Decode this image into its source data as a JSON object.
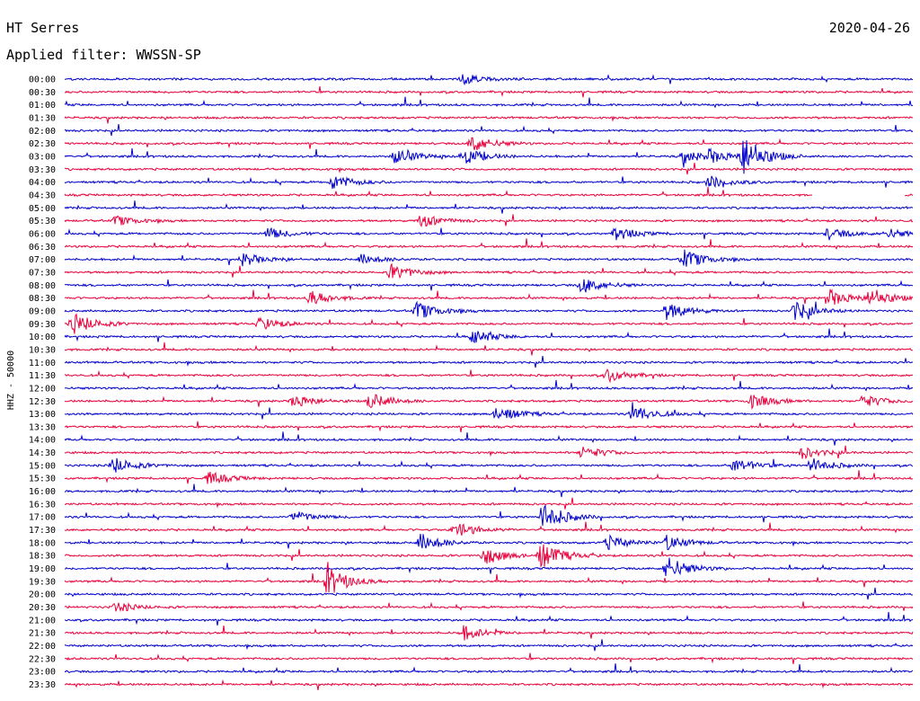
{
  "chart_data": {
    "type": "line",
    "title": "HT Serres",
    "subtitle": "Applied filter: WWSSN-SP",
    "date": "2020-04-26",
    "ylabel": "HHZ - 50000",
    "xlabel": "",
    "grid": false,
    "legend": "none",
    "colors": {
      "even": "#0000cc",
      "odd": "#e8003c",
      "background": "#ffffff",
      "text": "#000000"
    },
    "row_labels": [
      "00:00",
      "00:30",
      "01:00",
      "01:30",
      "02:00",
      "02:30",
      "03:00",
      "03:30",
      "04:00",
      "04:30",
      "05:00",
      "05:30",
      "06:00",
      "06:30",
      "07:00",
      "07:30",
      "08:00",
      "08:30",
      "09:00",
      "09:30",
      "10:00",
      "10:30",
      "11:00",
      "11:30",
      "12:00",
      "12:30",
      "13:00",
      "13:30",
      "14:00",
      "14:30",
      "15:00",
      "15:30",
      "16:00",
      "16:30",
      "17:00",
      "17:30",
      "18:00",
      "18:30",
      "19:00",
      "19:30",
      "20:00",
      "20:30",
      "21:00",
      "21:30",
      "22:00",
      "22:30",
      "23:00",
      "23:30"
    ],
    "row_minutes": 30,
    "gaps": [
      {
        "row": "04:30",
        "from": 0.882,
        "to": 0.99
      }
    ],
    "events": [
      {
        "row": "00:00",
        "t": 0.47,
        "amp": 0.3
      },
      {
        "row": "02:30",
        "t": 0.48,
        "amp": 0.55
      },
      {
        "row": "03:00",
        "t": 0.39,
        "amp": 0.5
      },
      {
        "row": "03:00",
        "t": 0.469,
        "amp": 0.55
      },
      {
        "row": "03:00",
        "t": 0.8,
        "amp": 1.3
      },
      {
        "row": "03:00",
        "t": 0.73,
        "amp": 0.4
      },
      {
        "row": "03:00",
        "t": 0.76,
        "amp": 0.35
      },
      {
        "row": "04:00",
        "t": 0.316,
        "amp": 0.45
      },
      {
        "row": "04:00",
        "t": 0.76,
        "amp": 0.4
      },
      {
        "row": "05:30",
        "t": 0.42,
        "amp": 0.4
      },
      {
        "row": "05:30",
        "t": 0.06,
        "amp": 0.3
      },
      {
        "row": "06:00",
        "t": 0.24,
        "amp": 0.35
      },
      {
        "row": "06:00",
        "t": 0.65,
        "amp": 0.4
      },
      {
        "row": "06:00",
        "t": 0.9,
        "amp": 0.35
      },
      {
        "row": "06:00",
        "t": 0.97,
        "amp": 0.3
      },
      {
        "row": "07:00",
        "t": 0.21,
        "amp": 0.4
      },
      {
        "row": "07:00",
        "t": 0.73,
        "amp": 0.6
      },
      {
        "row": "07:00",
        "t": 0.35,
        "amp": 0.3
      },
      {
        "row": "07:30",
        "t": 0.385,
        "amp": 0.5
      },
      {
        "row": "08:00",
        "t": 0.61,
        "amp": 0.5
      },
      {
        "row": "08:30",
        "t": 0.29,
        "amp": 0.45
      },
      {
        "row": "08:30",
        "t": 0.9,
        "amp": 0.55
      },
      {
        "row": "08:30",
        "t": 0.95,
        "amp": 0.6
      },
      {
        "row": "09:00",
        "t": 0.415,
        "amp": 0.55
      },
      {
        "row": "09:00",
        "t": 0.71,
        "amp": 0.55
      },
      {
        "row": "09:00",
        "t": 0.86,
        "amp": 0.6
      },
      {
        "row": "09:30",
        "t": 0.01,
        "amp": 0.7
      },
      {
        "row": "09:30",
        "t": 0.23,
        "amp": 0.4
      },
      {
        "row": "10:00",
        "t": 0.48,
        "amp": 0.45
      },
      {
        "row": "11:30",
        "t": 0.64,
        "amp": 0.4
      },
      {
        "row": "12:30",
        "t": 0.36,
        "amp": 0.5
      },
      {
        "row": "12:30",
        "t": 0.27,
        "amp": 0.4
      },
      {
        "row": "12:30",
        "t": 0.81,
        "amp": 0.45
      },
      {
        "row": "12:30",
        "t": 0.94,
        "amp": 0.4
      },
      {
        "row": "13:00",
        "t": 0.51,
        "amp": 0.5
      },
      {
        "row": "13:00",
        "t": 0.67,
        "amp": 0.55
      },
      {
        "row": "14:30",
        "t": 0.61,
        "amp": 0.4
      },
      {
        "row": "14:30",
        "t": 0.87,
        "amp": 0.35
      },
      {
        "row": "15:00",
        "t": 0.057,
        "amp": 0.5
      },
      {
        "row": "15:00",
        "t": 0.79,
        "amp": 0.45
      },
      {
        "row": "15:00",
        "t": 0.88,
        "amp": 0.45
      },
      {
        "row": "15:30",
        "t": 0.17,
        "amp": 0.4
      },
      {
        "row": "17:00",
        "t": 0.564,
        "amp": 0.9
      },
      {
        "row": "17:00",
        "t": 0.27,
        "amp": 0.35
      },
      {
        "row": "17:30",
        "t": 0.46,
        "amp": 0.5
      },
      {
        "row": "18:00",
        "t": 0.42,
        "amp": 0.55
      },
      {
        "row": "18:00",
        "t": 0.64,
        "amp": 0.45
      },
      {
        "row": "18:00",
        "t": 0.71,
        "amp": 0.45
      },
      {
        "row": "18:30",
        "t": 0.495,
        "amp": 0.55
      },
      {
        "row": "18:30",
        "t": 0.562,
        "amp": 0.8
      },
      {
        "row": "19:00",
        "t": 0.71,
        "amp": 0.75
      },
      {
        "row": "19:30",
        "t": 0.31,
        "amp": 0.9
      },
      {
        "row": "20:30",
        "t": 0.06,
        "amp": 0.3
      },
      {
        "row": "21:30",
        "t": 0.47,
        "amp": 0.45
      }
    ]
  }
}
